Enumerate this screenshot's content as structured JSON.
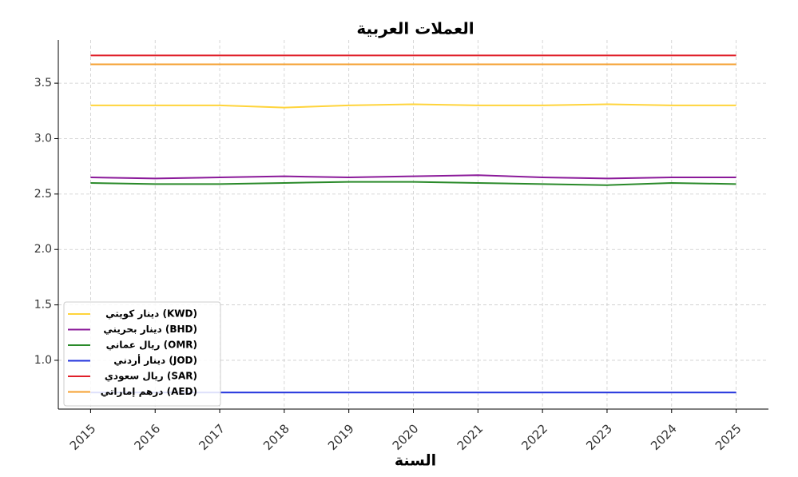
{
  "chart_data": {
    "type": "line",
    "title": "العملات العربية",
    "x_label": "السنة",
    "x": [
      2015,
      2016,
      2017,
      2018,
      2019,
      2020,
      2021,
      2022,
      2023,
      2024,
      2025
    ],
    "xlim": [
      2014.5,
      2025.5
    ],
    "xticks": [
      2015,
      2016,
      2017,
      2018,
      2019,
      2020,
      2021,
      2022,
      2023,
      2024,
      2025
    ],
    "ylim": [
      0.56,
      3.89
    ],
    "yticks": [
      {
        "value": 1,
        "label": "1.0"
      },
      1.5,
      {
        "value": 2,
        "label": "2.0"
      },
      2.5,
      {
        "value": 3,
        "label": "3.0"
      },
      3.5
    ],
    "grid": true,
    "legend": "lower left",
    "series": [
      {
        "name": "دينار كويتي (KWD)",
        "color": "#ffd43b",
        "values": [
          3.3,
          3.3,
          3.3,
          3.28,
          3.3,
          3.31,
          3.3,
          3.3,
          3.31,
          3.3,
          3.3
        ]
      },
      {
        "name": "دينار بحريني (BHD)",
        "color": "#8b1a9a",
        "values": [
          2.65,
          2.64,
          2.65,
          2.66,
          2.65,
          2.66,
          2.67,
          2.65,
          2.64,
          2.65,
          2.65
        ]
      },
      {
        "name": "ريال عماني (OMR)",
        "color": "#2a8a2a",
        "values": [
          2.6,
          2.59,
          2.59,
          2.6,
          2.61,
          2.61,
          2.6,
          2.59,
          2.58,
          2.6,
          2.59
        ]
      },
      {
        "name": "دينار أردني (JOD)",
        "color": "#2233dd",
        "values": [
          0.71,
          0.71,
          0.71,
          0.71,
          0.71,
          0.71,
          0.71,
          0.71,
          0.71,
          0.71,
          0.71
        ]
      },
      {
        "name": "ريال سعودي (SAR)",
        "color": "#e0202a",
        "values": [
          3.75,
          3.75,
          3.75,
          3.75,
          3.75,
          3.75,
          3.75,
          3.75,
          3.75,
          3.75,
          3.75
        ]
      },
      {
        "name": "درهم إماراتي (AED)",
        "color": "#f5a030",
        "values": [
          3.67,
          3.67,
          3.67,
          3.67,
          3.67,
          3.67,
          3.67,
          3.67,
          3.67,
          3.67,
          3.67
        ]
      }
    ]
  }
}
